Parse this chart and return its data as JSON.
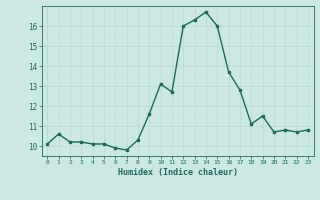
{
  "title": "",
  "xlabel": "Humidex (Indice chaleur)",
  "x_values": [
    0,
    1,
    2,
    3,
    4,
    5,
    6,
    7,
    8,
    9,
    10,
    11,
    12,
    13,
    14,
    15,
    16,
    17,
    18,
    19,
    20,
    21,
    22,
    23
  ],
  "y_values": [
    10.1,
    10.6,
    10.2,
    10.2,
    10.1,
    10.1,
    9.9,
    9.8,
    10.3,
    11.6,
    13.1,
    12.7,
    16.0,
    16.3,
    16.7,
    16.0,
    13.7,
    12.8,
    11.1,
    11.5,
    10.7,
    10.8,
    10.7,
    10.8
  ],
  "line_color": "#1a6b5a",
  "marker": "s",
  "marker_size": 2,
  "bg_color": "#cce8e4",
  "grid_color": "#b8d8d4",
  "axis_color": "#1a6b5a",
  "tick_label_color": "#1a6b5a",
  "xlabel_color": "#1a6b5a",
  "ylim": [
    9.5,
    17.0
  ],
  "yticks": [
    10,
    11,
    12,
    13,
    14,
    15,
    16
  ],
  "xlim": [
    -0.5,
    23.5
  ],
  "linewidth": 1.0
}
